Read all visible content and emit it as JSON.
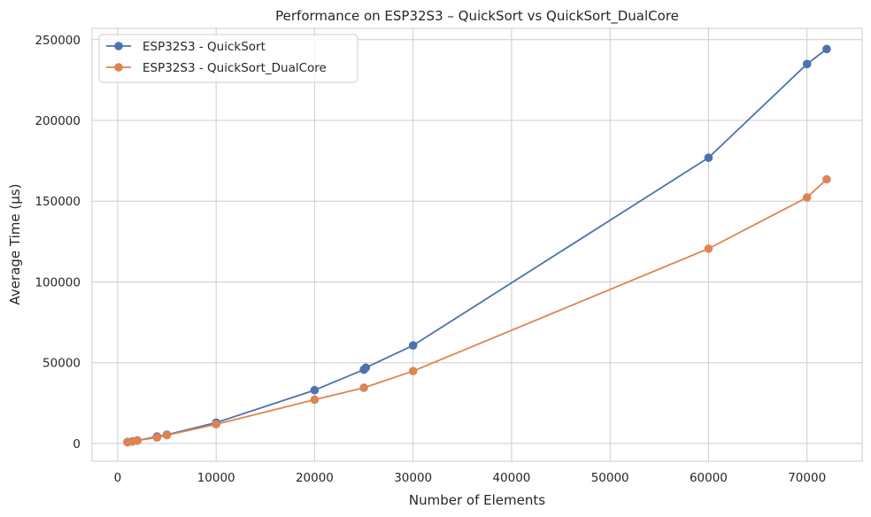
{
  "chart_data": {
    "type": "line",
    "title": "Performance on ESP32S3 – QuickSort vs QuickSort_DualCore",
    "xlabel": "Number of Elements",
    "ylabel": "Average Time (µs)",
    "xlim": [
      -2600,
      75600
    ],
    "ylim": [
      -11000,
      257000
    ],
    "xticks": [
      0,
      10000,
      20000,
      30000,
      40000,
      50000,
      60000,
      70000
    ],
    "yticks": [
      0,
      50000,
      100000,
      150000,
      200000,
      250000
    ],
    "grid": true,
    "legend_position": "top-left",
    "series": [
      {
        "name": "ESP32S3 - QuickSort",
        "color": "#4c72b0",
        "x": [
          1000,
          1500,
          2000,
          4000,
          5000,
          10000,
          20000,
          25000,
          25200,
          30000,
          60000,
          70000,
          72000
        ],
        "y": [
          900,
          1300,
          1800,
          4300,
          5400,
          12900,
          33000,
          45700,
          46900,
          60700,
          176900,
          234900,
          244200
        ]
      },
      {
        "name": "ESP32S3 - QuickSort_DualCore",
        "color": "#dd8452",
        "x": [
          1000,
          1500,
          2000,
          4000,
          5000,
          10000,
          20000,
          25000,
          30000,
          60000,
          70000,
          72000
        ],
        "y": [
          700,
          1200,
          1900,
          3700,
          5100,
          11900,
          27100,
          34500,
          44800,
          120600,
          152300,
          163500
        ]
      }
    ]
  }
}
